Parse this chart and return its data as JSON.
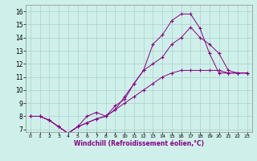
{
  "xlabel": "Windchill (Refroidissement éolien,°C)",
  "bg_color": "#cff0ea",
  "line_color": "#880088",
  "grid_color": "#aacfca",
  "ylim": [
    6.8,
    16.5
  ],
  "xlim": [
    -0.5,
    23.5
  ],
  "yticks": [
    7,
    8,
    9,
    10,
    11,
    12,
    13,
    14,
    15,
    16
  ],
  "xticks": [
    0,
    1,
    2,
    3,
    4,
    5,
    6,
    7,
    8,
    9,
    10,
    11,
    12,
    13,
    14,
    15,
    16,
    17,
    18,
    19,
    20,
    21,
    22,
    23
  ],
  "series": [
    {
      "x": [
        0,
        1,
        2,
        3,
        4,
        5,
        6,
        7,
        8,
        9,
        10,
        11,
        12,
        13,
        14,
        15,
        16,
        17,
        18,
        19,
        20,
        21,
        22,
        23
      ],
      "y": [
        8.0,
        8.0,
        7.7,
        7.2,
        6.7,
        7.2,
        8.0,
        8.3,
        8.0,
        8.8,
        9.3,
        10.5,
        11.5,
        13.5,
        14.2,
        15.3,
        15.8,
        15.8,
        14.7,
        12.8,
        11.3,
        11.3,
        11.3,
        11.3
      ]
    },
    {
      "x": [
        0,
        1,
        2,
        3,
        4,
        5,
        6,
        7,
        8,
        9,
        10,
        11,
        12,
        13,
        14,
        15,
        16,
        17,
        18,
        19,
        20,
        21,
        22,
        23
      ],
      "y": [
        8.0,
        8.0,
        7.7,
        7.2,
        6.7,
        7.2,
        7.5,
        7.8,
        8.0,
        8.5,
        9.5,
        10.5,
        11.5,
        12.0,
        12.5,
        13.5,
        14.0,
        14.8,
        14.0,
        13.5,
        12.8,
        11.5,
        11.3,
        11.3
      ]
    },
    {
      "x": [
        0,
        1,
        2,
        3,
        4,
        5,
        6,
        7,
        8,
        9,
        10,
        11,
        12,
        13,
        14,
        15,
        16,
        17,
        18,
        19,
        20,
        21,
        22,
        23
      ],
      "y": [
        8.0,
        8.0,
        7.7,
        7.2,
        6.7,
        7.2,
        7.5,
        7.8,
        8.0,
        8.5,
        9.0,
        9.5,
        10.0,
        10.5,
        11.0,
        11.3,
        11.5,
        11.5,
        11.5,
        11.5,
        11.5,
        11.3,
        11.3,
        11.3
      ]
    }
  ]
}
